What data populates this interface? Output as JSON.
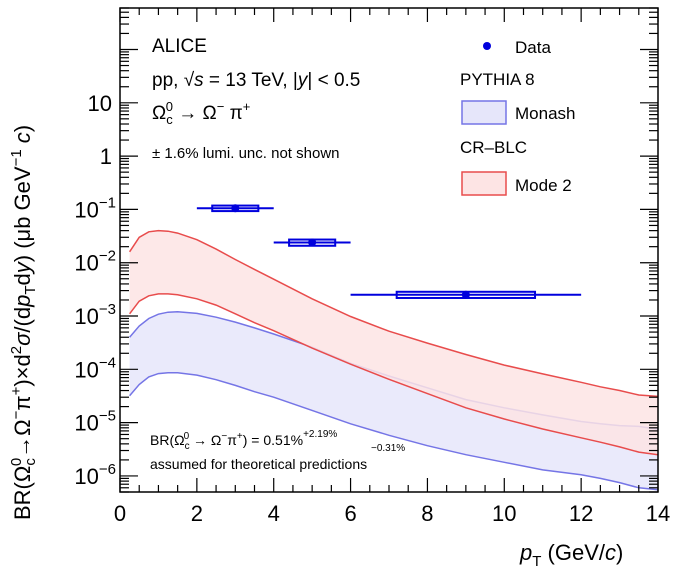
{
  "chart_data": {
    "type": "scatter",
    "x_axis": {
      "range": [
        0,
        14
      ],
      "ticks": [
        "0",
        "2",
        "4",
        "6",
        "8",
        "10",
        "12",
        "14"
      ],
      "label_main": "p",
      "label_sub": "T",
      "label_unit": " (GeV/",
      "label_c": "c",
      "label_end": ")"
    },
    "y_axis": {
      "scale": "log",
      "range": [
        5e-07,
        600
      ],
      "ticks": [
        {
          "value": 1e-06,
          "base": "10",
          "exp": "−6"
        },
        {
          "value": 1e-05,
          "base": "10",
          "exp": "−5"
        },
        {
          "value": 0.0001,
          "base": "10",
          "exp": "−4"
        },
        {
          "value": 0.001,
          "base": "10",
          "exp": "−3"
        },
        {
          "value": 0.01,
          "base": "10",
          "exp": "−2"
        },
        {
          "value": 0.1,
          "base": "10",
          "exp": "−1"
        },
        {
          "value": 1,
          "base": "1",
          "exp": ""
        },
        {
          "value": 10,
          "base": "10",
          "exp": ""
        }
      ],
      "label": "BR(Ω_c^0→Ω^−π^+)×d²σ/(dp_T dy) (μb GeV^−1 c)"
    },
    "series": [
      {
        "name": "Data",
        "color": "#0000dd",
        "points": [
          {
            "x": 3.0,
            "y": 0.105,
            "x_low": 2.0,
            "x_high": 4.0,
            "sys_low": 0.093,
            "sys_high": 0.118
          },
          {
            "x": 5.0,
            "y": 0.024,
            "x_low": 4.0,
            "x_high": 6.0,
            "sys_low": 0.0208,
            "sys_high": 0.0272
          },
          {
            "x": 9.0,
            "y": 0.0025,
            "x_low": 6.0,
            "x_high": 12.0,
            "sys_low": 0.00218,
            "sys_high": 0.00285
          }
        ]
      }
    ],
    "bands": [
      {
        "name": "Monash",
        "fill": "#e6e6fa",
        "stroke": "#7575e6",
        "x": [
          0.25,
          0.5,
          0.75,
          1.0,
          1.25,
          1.5,
          2.0,
          2.5,
          3.0,
          3.5,
          4.0,
          5.0,
          6.0,
          7.0,
          8.0,
          9.0,
          10.0,
          11.0,
          12.0,
          12.5,
          13.0,
          13.5,
          14.0
        ],
        "upper": [
          0.0004,
          0.00065,
          0.0009,
          0.00108,
          0.00118,
          0.0012,
          0.00112,
          0.00095,
          0.00077,
          0.0006,
          0.00046,
          0.00026,
          0.00013,
          7.5e-05,
          4.5e-05,
          2.7e-05,
          1.9e-05,
          1.4e-05,
          1.05e-05,
          9.5e-06,
          8.8e-06,
          8.5e-06,
          7.5e-06
        ],
        "lower": [
          3.2e-05,
          5.2e-05,
          7.2e-05,
          8.3e-05,
          8.6e-05,
          8.6e-05,
          7.8e-05,
          6.4e-05,
          5e-05,
          3.8e-05,
          3e-05,
          1.7e-05,
          9.5e-06,
          5.8e-06,
          3.7e-06,
          2.5e-06,
          1.8e-06,
          1.3e-06,
          1.05e-06,
          9e-07,
          7.5e-07,
          6e-07,
          5.5e-07
        ]
      },
      {
        "name": "Mode 2",
        "fill": "#fde4e4",
        "stroke": "#e84c4c",
        "x": [
          0.25,
          0.5,
          0.75,
          1.0,
          1.25,
          1.5,
          2.0,
          2.5,
          3.0,
          3.5,
          4.0,
          5.0,
          6.0,
          7.0,
          8.0,
          9.0,
          10.0,
          11.0,
          12.0,
          12.5,
          13.0,
          13.5,
          14.0
        ],
        "upper": [
          0.016,
          0.03,
          0.038,
          0.04,
          0.039,
          0.036,
          0.027,
          0.018,
          0.0115,
          0.0075,
          0.0049,
          0.0021,
          0.00098,
          0.00052,
          0.00031,
          0.00019,
          0.00012,
          8.2e-05,
          5.7e-05,
          4.7e-05,
          4e-05,
          3.3e-05,
          3.1e-05
        ],
        "lower": [
          0.0011,
          0.0019,
          0.0024,
          0.0026,
          0.0026,
          0.0025,
          0.0021,
          0.0016,
          0.0011,
          0.00075,
          0.00053,
          0.00025,
          0.000125,
          6.5e-05,
          3.5e-05,
          1.9e-05,
          1.17e-05,
          7.6e-06,
          5.2e-06,
          4.3e-06,
          3.5e-06,
          2.8e-06,
          2.5e-06
        ]
      }
    ]
  },
  "annotations": {
    "experiment": "ALICE",
    "collision_a": "pp, ",
    "sqrt_s": "√s",
    "collision_b": " = 13 TeV, |",
    "y_sym": "y",
    "collision_c": "| < 0.5",
    "decay_omega_c": "Ω",
    "decay_c_sub": "c",
    "decay_0_sup": "0",
    "decay_arrow": " → Ω",
    "decay_minus": "−",
    "decay_pi": " π",
    "decay_plus": "+",
    "lumi_note": "± 1.6% lumi. unc. not shown",
    "br_prefix": "BR(Ω",
    "br_c_sub": "c",
    "br_0_sup": "0",
    "br_mid": " → Ω",
    "br_minus": "−",
    "br_pi": "π",
    "br_plus": "+",
    "br_eq": ") = 0.51%",
    "br_err_up": "+2.19%",
    "br_err_down": "−0.31%",
    "br_note": "assumed for theoretical predictions"
  },
  "legend": {
    "data_label": "Data",
    "generator_label": "PYTHIA 8",
    "monash_label": "Monash",
    "crblc_label": "CR–BLC",
    "mode2_label": "Mode 2"
  }
}
